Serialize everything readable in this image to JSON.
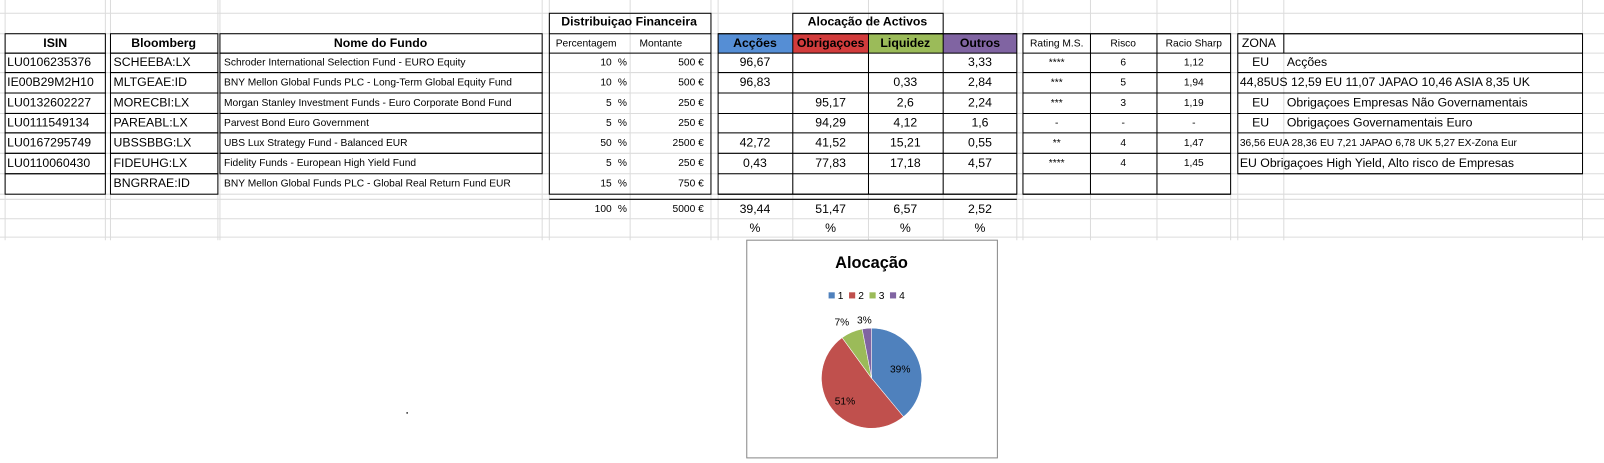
{
  "headers": {
    "distribuicao": "Distribuiçao Financeira",
    "alocacao": "Alocação de  Activos",
    "columns": [
      "ISIN",
      "Bloomberg",
      "Nome do Fundo",
      "Percentagem",
      "Montante",
      "Acções",
      "Obrigaçoes",
      "Liquidez",
      "Outros",
      "Rating M.S.",
      "Risco",
      "Racio Sharp",
      "ZONA"
    ]
  },
  "table": {
    "rows": [
      [
        "LU0106235376",
        "SCHEEBA:LX",
        "Schroder International Selection Fund - EURO Equity",
        "10",
        "%",
        "500 €",
        "96,67",
        null,
        null,
        "3,33",
        "****",
        "6",
        "1,12",
        "EU",
        "Acções"
      ],
      [
        "IE00B29M2H10",
        "MLTGEAE:ID",
        "BNY Mellon Global Funds PLC - Long-Term Global Equity Fund",
        "10",
        "%",
        "500 €",
        "96,83",
        null,
        "0,33",
        "2,84",
        "***",
        "5",
        "1,94",
        "44,85US 12,59 EU 11,07 JAPAO 10,46 ASIA 8,35 UK",
        null
      ],
      [
        "LU0132602227",
        "MORECBI:LX",
        "Morgan Stanley Investment Funds - Euro Corporate Bond Fund",
        "5",
        "%",
        "250 €",
        null,
        "95,17",
        "2,6",
        "2,24",
        "***",
        "3",
        "1,19",
        "EU",
        "Obrigaçoes Empresas Não Governamentais"
      ],
      [
        "LU0111549134",
        "PAREABL:LX",
        "Parvest Bond Euro Government",
        "5",
        "%",
        "250 €",
        null,
        "94,29",
        "4,12",
        "1,6",
        "-",
        "-",
        "-",
        "EU",
        "Obrigaçoes Governamentais Euro"
      ],
      [
        "LU0167295749",
        "UBSSBBG:LX",
        "UBS Lux Strategy Fund - Balanced EUR",
        "50",
        "%",
        "2500 €",
        "42,72",
        "41,52",
        "15,21",
        "0,55",
        "**",
        "4",
        "1,47",
        "36,56 EUA 28,36 EU  7,21 JAPAO 6,78 UK 5,27 EX-Zona Eur",
        null
      ],
      [
        "LU0110060430",
        "FIDEUHG:LX",
        "Fidelity Funds - European High Yield Fund",
        "5",
        "%",
        "250 €",
        "0,43",
        "77,83",
        "17,18",
        "4,57",
        "****",
        "4",
        "1,45",
        "EU Obrigaçoes High Yield, Alto risco de Empresas",
        null
      ],
      [
        null,
        "BNGRRAE:ID",
        "BNY Mellon Global Funds PLC - Global Real Return Fund EUR",
        "15",
        "%",
        "750 €",
        null,
        null,
        null,
        null,
        null,
        null,
        null,
        null,
        null
      ]
    ],
    "totals": [
      "100",
      "%",
      "5000 €",
      "39,44",
      "51,47",
      "6,57",
      "2,52"
    ],
    "units_row": [
      "%",
      "%",
      "%",
      "%"
    ]
  },
  "chart_data": {
    "type": "pie",
    "title": "Alocação",
    "categories": [
      "1",
      "2",
      "3",
      "4"
    ],
    "values": [
      39,
      51,
      7,
      3
    ],
    "value_labels": [
      "39%",
      "51%",
      "7%",
      "3%"
    ],
    "colors": [
      "#4f81bd",
      "#c0504d",
      "#9bbb59",
      "#8064a2"
    ]
  }
}
